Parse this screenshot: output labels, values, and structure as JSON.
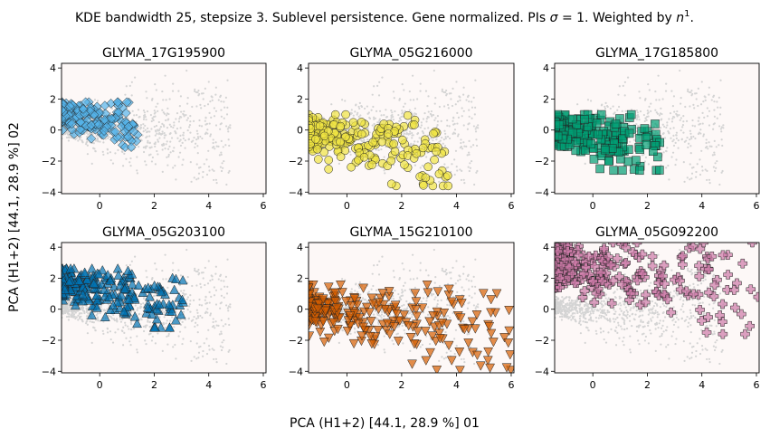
{
  "figure": {
    "title": "KDE bandwidth 25, stepsize 3. Sublevel persistence. Gene normalized. PIs σ = 1. Weighted by n¹.",
    "xlabel": "PCA (H1+2) [44.1, 28.9 %] 01",
    "ylabel": "PCA (H1+2) [44.1, 28.9 %] 02"
  },
  "chart_data": [
    {
      "type": "scatter",
      "title": "GLYMA_17G195900",
      "marker": "diamond",
      "color": "#56b4e9",
      "xlim": [
        -1.4,
        6.1
      ],
      "ylim": [
        -4.1,
        4.3
      ],
      "xticks": [
        0,
        2,
        4,
        6
      ],
      "yticks": [
        -4,
        -2,
        0,
        2,
        4
      ],
      "background_points": "light gray cloud",
      "highlight_x_range": [
        -1.4,
        1.5
      ],
      "highlight_y_range": [
        -1.1,
        1.8
      ]
    },
    {
      "type": "scatter",
      "title": "GLYMA_05G216000",
      "marker": "circle",
      "color": "#f0e442",
      "xlim": [
        -1.4,
        6.1
      ],
      "ylim": [
        -4.1,
        4.3
      ],
      "xticks": [
        0,
        2,
        4,
        6
      ],
      "yticks": [
        -4,
        -2,
        0,
        2,
        4
      ],
      "background_points": "light gray cloud",
      "highlight_x_range": [
        -1.4,
        3.7
      ],
      "highlight_y_range": [
        -3.6,
        1.0
      ]
    },
    {
      "type": "scatter",
      "title": "GLYMA_17G185800",
      "marker": "square",
      "color": "#009e73",
      "xlim": [
        -1.4,
        6.1
      ],
      "ylim": [
        -4.1,
        4.3
      ],
      "xticks": [
        0,
        2,
        4,
        6
      ],
      "yticks": [
        -4,
        -2,
        0,
        2,
        4
      ],
      "background_points": "light gray cloud",
      "highlight_x_range": [
        -1.4,
        2.5
      ],
      "highlight_y_range": [
        -2.6,
        1.0
      ]
    },
    {
      "type": "scatter",
      "title": "GLYMA_05G203100",
      "marker": "triangle-up",
      "color": "#0072b2",
      "xlim": [
        -1.4,
        6.1
      ],
      "ylim": [
        -4.1,
        4.3
      ],
      "xticks": [
        0,
        2,
        4,
        6
      ],
      "yticks": [
        -4,
        -2,
        0,
        2,
        4
      ],
      "background_points": "light gray cloud",
      "highlight_x_range": [
        -1.4,
        3.1
      ],
      "highlight_y_range": [
        -1.2,
        2.6
      ]
    },
    {
      "type": "scatter",
      "title": "GLYMA_15G210100",
      "marker": "triangle-down",
      "color": "#d55e00",
      "xlim": [
        -1.4,
        6.1
      ],
      "ylim": [
        -4.1,
        4.3
      ],
      "xticks": [
        0,
        2,
        4,
        6
      ],
      "yticks": [
        -4,
        -2,
        0,
        2,
        4
      ],
      "background_points": "light gray cloud",
      "highlight_x_range": [
        -1.4,
        6.1
      ],
      "highlight_y_range": [
        -3.9,
        1.6
      ]
    },
    {
      "type": "scatter",
      "title": "GLYMA_05G092200",
      "marker": "plus",
      "color": "#cc79a7",
      "xlim": [
        -1.4,
        6.1
      ],
      "ylim": [
        -4.1,
        4.3
      ],
      "xticks": [
        0,
        2,
        4,
        6
      ],
      "yticks": [
        -4,
        -2,
        0,
        2,
        4
      ],
      "background_points": "light gray cloud",
      "highlight_x_range": [
        -1.4,
        6.1
      ],
      "highlight_y_range": [
        -1.6,
        4.3
      ]
    }
  ]
}
